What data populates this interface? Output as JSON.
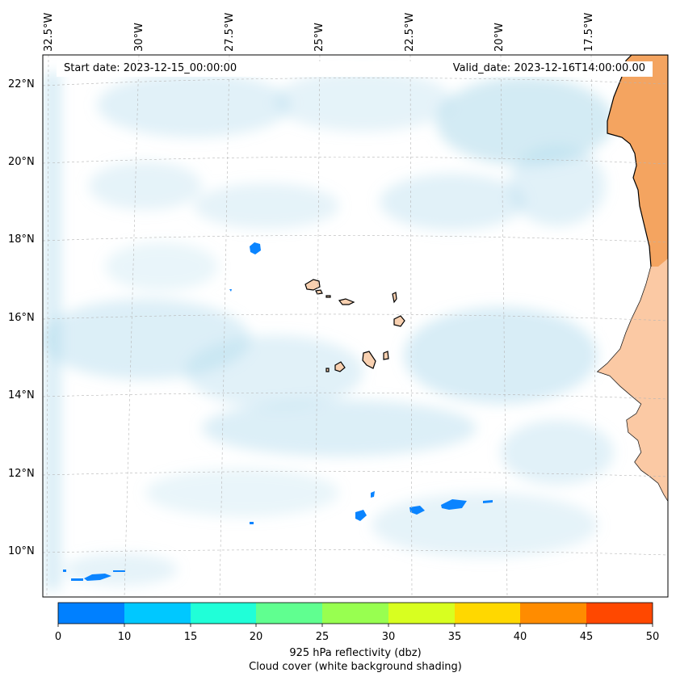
{
  "map": {
    "lon_labels": [
      "32.5°W",
      "30°W",
      "27.5°W",
      "25°W",
      "22.5°W",
      "20°W",
      "17.5°W"
    ],
    "lat_labels": [
      "22°N",
      "20°N",
      "18°N",
      "16°N",
      "14°N",
      "12°N",
      "10°N"
    ],
    "start_date": "Start date: 2023-12-15_00:00:00",
    "valid_date": "Valid_date: 2023-12-16T14:00:00.00",
    "land_color": "#f4a460",
    "island_color": "#f8d0b0",
    "cloud_color": "#a8d8ea"
  },
  "colorbar": {
    "ticks": [
      "0",
      "10",
      "15",
      "20",
      "25",
      "30",
      "35",
      "40",
      "45",
      "50"
    ],
    "colors": [
      "#0080ff",
      "#00c8ff",
      "#20ffd8",
      "#60ff90",
      "#98ff50",
      "#d8ff20",
      "#ffd800",
      "#ff8c00",
      "#ff4800"
    ],
    "label_line1": "925 hPa reflectivity (dbz)",
    "label_line2": "Cloud cover (white background shading)"
  }
}
